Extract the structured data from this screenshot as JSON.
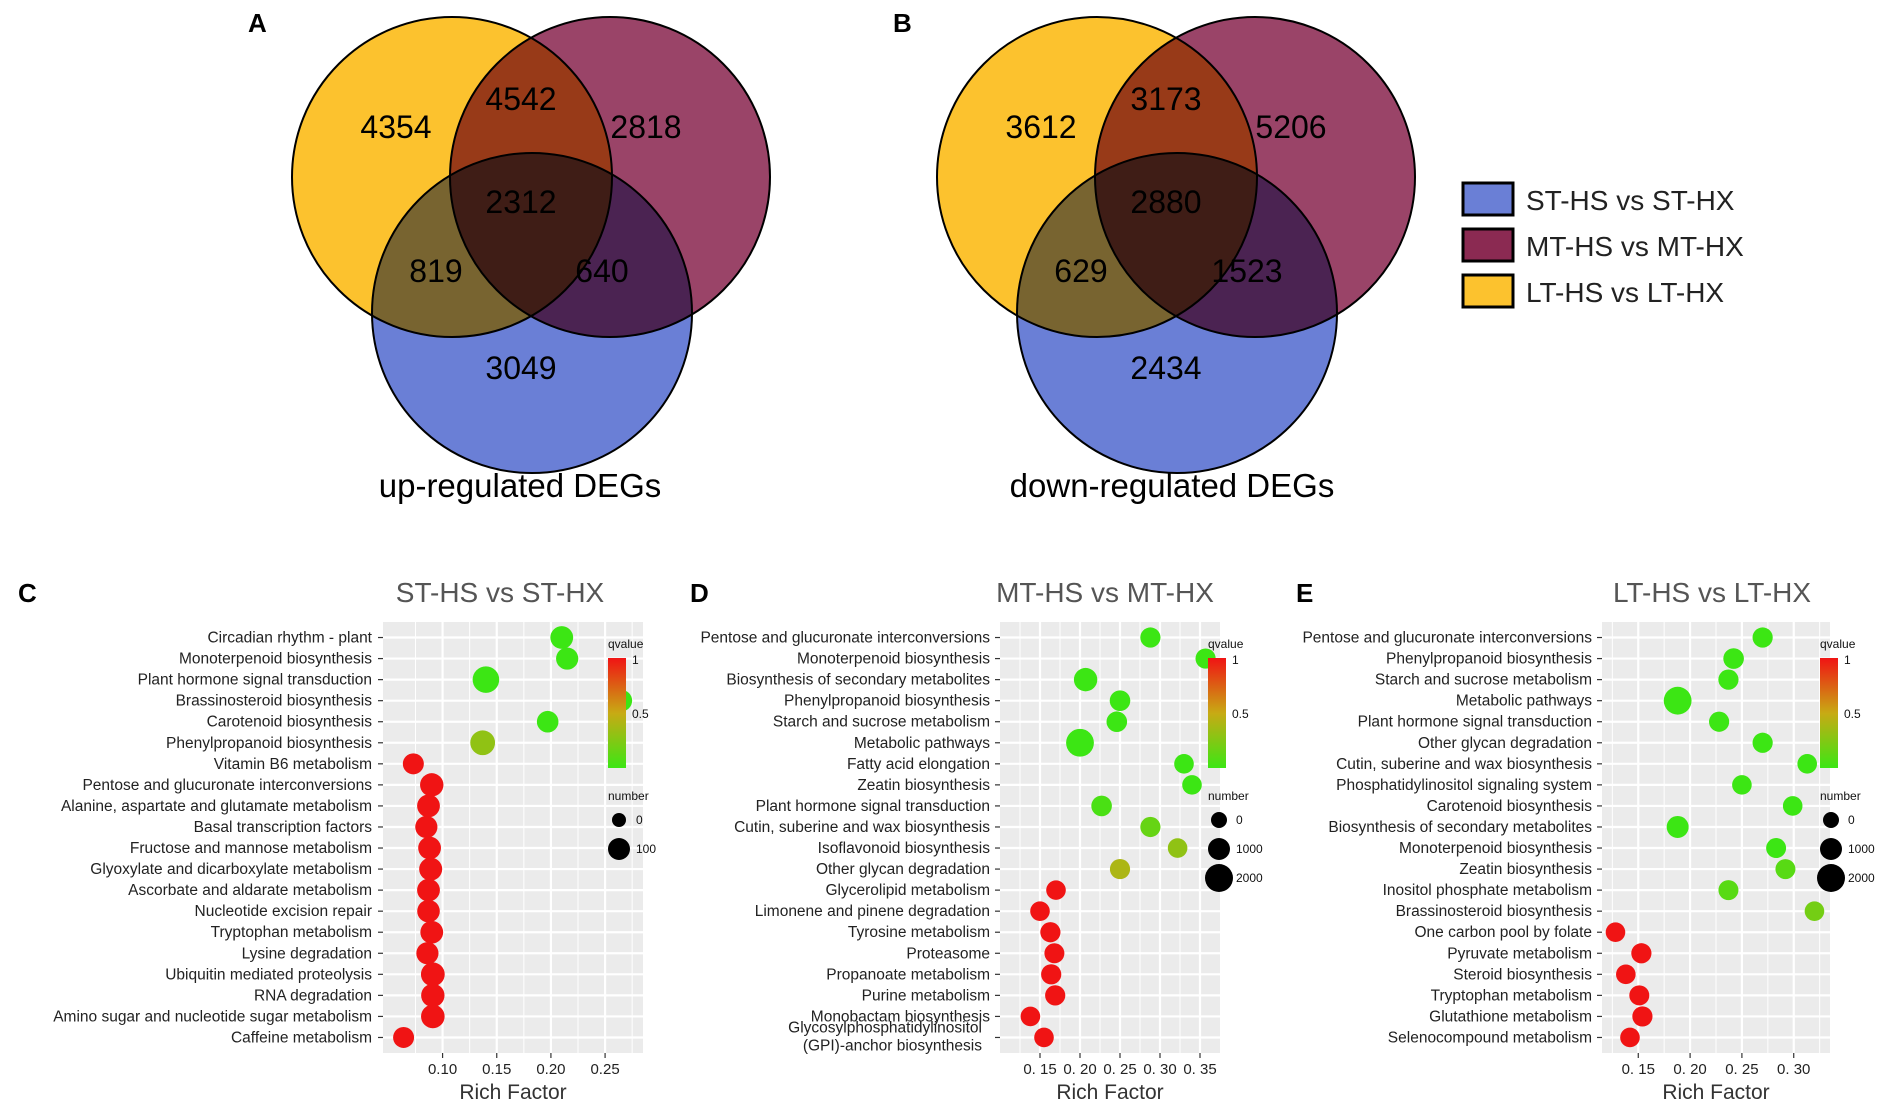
{
  "venn_A": {
    "letter": "A",
    "label": "up-regulated DEGs",
    "counts": {
      "only_LT": "4354",
      "LT_MT": "4542",
      "only_MT": "2818",
      "all": "2312",
      "LT_ST": "819",
      "MT_ST": "640",
      "only_ST": "3049"
    }
  },
  "venn_B": {
    "letter": "B",
    "label": "down-regulated DEGs",
    "counts": {
      "only_LT": "3612",
      "LT_MT": "3173",
      "only_MT": "5206",
      "all": "2880",
      "LT_ST": "629",
      "MT_ST": "1523",
      "only_ST": "2434"
    }
  },
  "venn_legend": [
    {
      "label": "ST-HS vs ST-HX",
      "color": "#6a7fd6"
    },
    {
      "label": "MT-HS vs MT-HX",
      "color": "#8b2a52"
    },
    {
      "label": "LT-HS vs LT-HX",
      "color": "#fcc22e"
    }
  ],
  "venn_colors": {
    "ST": "#4a63c9",
    "MT": "#8b2a52",
    "LT": "#fdb813"
  },
  "chart_data": [
    {
      "type": "scatter",
      "panel": "C",
      "title": "ST-HS vs ST-HX",
      "xlabel": "Rich  Factor",
      "xlim": [
        0.045,
        0.285
      ],
      "xticks": [
        0.1,
        0.15,
        0.2,
        0.25
      ],
      "xtick_labels": [
        "0.10",
        "0.15",
        "0.20",
        "0.25"
      ],
      "legend": {
        "color_title": "qvalue",
        "color_ticks": [
          "1",
          "0.5"
        ],
        "size_title": "number",
        "size_values": [
          0,
          100
        ],
        "size_labels": [
          "0",
          "100"
        ],
        "size_max": 100
      },
      "terms": [
        "Circadian rhythm - plant",
        "Monoterpenoid biosynthesis",
        "Plant hormone signal transduction",
        "Brassinosteroid biosynthesis",
        "Carotenoid biosynthesis",
        "Phenylpropanoid biosynthesis",
        "Vitamin B6 metabolism",
        "Pentose and glucuronate interconversions",
        "Alanine, aspartate and glutamate metabolism",
        "Basal transcription factors",
        "Fructose and mannose metabolism",
        "Glyoxylate and dicarboxylate metabolism",
        "Ascorbate and aldarate metabolism",
        "Nucleotide excision repair",
        "Tryptophan metabolism",
        "Lysine degradation",
        "Ubiquitin mediated proteolysis",
        "RNA degradation",
        "Amino sugar and nucleotide sugar metabolism",
        "Caffeine metabolism"
      ],
      "x": [
        0.21,
        0.215,
        0.14,
        0.265,
        0.197,
        0.137,
        0.073,
        0.09,
        0.087,
        0.085,
        0.088,
        0.089,
        0.087,
        0.087,
        0.09,
        0.086,
        0.091,
        0.091,
        0.091,
        0.064
      ],
      "qvalue": [
        0.0,
        0.0,
        0.0,
        0.0,
        0.0,
        0.3,
        1,
        1,
        1,
        1,
        1,
        1,
        1,
        1,
        1,
        1,
        1,
        1,
        1,
        1
      ],
      "number": [
        40,
        35,
        80,
        30,
        30,
        60,
        25,
        45,
        40,
        35,
        40,
        42,
        40,
        38,
        40,
        35,
        50,
        45,
        48,
        25
      ]
    },
    {
      "type": "scatter",
      "panel": "D",
      "title": "MT-HS vs MT-HX",
      "xlabel": "Rich  Factor",
      "xlim": [
        0.1,
        0.375
      ],
      "xticks": [
        0.15,
        0.2,
        0.25,
        0.3,
        0.35
      ],
      "xtick_labels": [
        "0. 15",
        "0. 20",
        "0. 25",
        "0. 30",
        "0. 35"
      ],
      "legend": {
        "color_title": "qvalue",
        "color_ticks": [
          "1",
          "0.5"
        ],
        "size_title": "number",
        "size_values": [
          0,
          1000,
          2000
        ],
        "size_labels": [
          "0",
          "1000",
          "2000"
        ],
        "size_max": 2000
      },
      "terms": [
        "Pentose and glucuronate interconversions",
        "Monoterpenoid biosynthesis",
        "Biosynthesis of secondary metabolites",
        "Phenylpropanoid biosynthesis",
        "Starch and sucrose metabolism",
        "Metabolic pathways",
        "Fatty acid elongation",
        "Zeatin biosynthesis",
        "Plant hormone signal transduction",
        "Cutin, suberine and wax biosynthesis",
        "Isoflavonoid biosynthesis",
        "Other glycan degradation",
        "Glycerolipid metabolism",
        "Limonene and pinene degradation",
        "Tyrosine metabolism",
        "Proteasome",
        "Propanoate metabolism",
        "Purine metabolism",
        "Monobactam biosynthesis",
        "Glycosylphosphatidylinositol\n(GPI)-anchor biosynthesis"
      ],
      "x": [
        0.288,
        0.357,
        0.207,
        0.25,
        0.246,
        0.2,
        0.33,
        0.34,
        0.227,
        0.288,
        0.322,
        0.25,
        0.17,
        0.15,
        0.163,
        0.168,
        0.164,
        0.169,
        0.138,
        0.155
      ],
      "qvalue": [
        0.0,
        0.0,
        0.0,
        0.0,
        0.0,
        0.0,
        0.0,
        0.0,
        0.05,
        0.15,
        0.3,
        0.4,
        1,
        1,
        1,
        1,
        1,
        1,
        1,
        1
      ],
      "number": [
        300,
        300,
        700,
        350,
        350,
        1500,
        250,
        250,
        350,
        300,
        250,
        300,
        250,
        250,
        300,
        280,
        300,
        300,
        250,
        250
      ]
    },
    {
      "type": "scatter",
      "panel": "E",
      "title": "LT-HS vs LT-HX",
      "xlabel": "Rich  Factor",
      "xlim": [
        0.115,
        0.335
      ],
      "xticks": [
        0.15,
        0.2,
        0.25,
        0.3
      ],
      "xtick_labels": [
        "0. 15",
        "0. 20",
        "0. 25",
        "0. 30"
      ],
      "legend": {
        "color_title": "qvalue",
        "color_ticks": [
          "1",
          "0.5"
        ],
        "size_title": "number",
        "size_values": [
          0,
          1000,
          2000
        ],
        "size_labels": [
          "0",
          "1000",
          "2000"
        ],
        "size_max": 2000
      },
      "terms": [
        "Pentose and glucuronate interconversions",
        "Phenylpropanoid biosynthesis",
        "Starch and sucrose metabolism",
        "Metabolic pathways",
        "Plant hormone signal transduction",
        "Other glycan degradation",
        "Cutin, suberine and wax biosynthesis",
        "Phosphatidylinositol signaling system",
        "Carotenoid biosynthesis",
        "Biosynthesis of secondary metabolites",
        "Monoterpenoid biosynthesis",
        "Zeatin biosynthesis",
        "Inositol phosphate metabolism",
        "Brassinosteroid biosynthesis",
        "One carbon pool by folate",
        "Pyruvate metabolism",
        "Steroid biosynthesis",
        "Tryptophan metabolism",
        "Glutathione metabolism",
        "Selenocompound metabolism"
      ],
      "x": [
        0.27,
        0.242,
        0.237,
        0.188,
        0.228,
        0.27,
        0.313,
        0.25,
        0.299,
        0.188,
        0.283,
        0.292,
        0.237,
        0.32,
        0.128,
        0.153,
        0.138,
        0.151,
        0.154,
        0.142
      ],
      "qvalue": [
        0.0,
        0.0,
        0.0,
        0.0,
        0.0,
        0.0,
        0.0,
        0.0,
        0.0,
        0.0,
        0.0,
        0.1,
        0.1,
        0.2,
        1,
        1,
        1,
        1,
        1,
        1
      ],
      "number": [
        300,
        350,
        300,
        1500,
        300,
        300,
        250,
        250,
        250,
        500,
        280,
        280,
        280,
        250,
        250,
        300,
        250,
        280,
        300,
        250
      ]
    }
  ]
}
